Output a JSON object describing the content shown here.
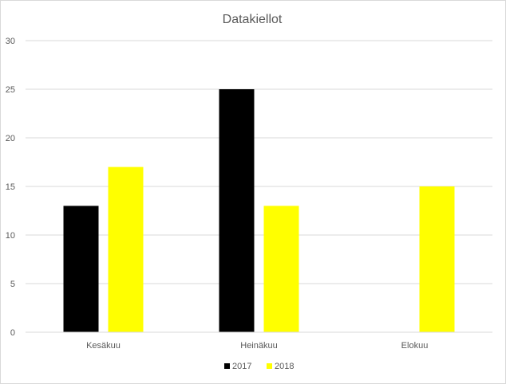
{
  "chart_data": {
    "type": "bar",
    "title": "Datakiellot",
    "xlabel": "",
    "ylabel": "",
    "categories": [
      "Kesäkuu",
      "Heinäkuu",
      "Elokuu"
    ],
    "series": [
      {
        "name": "2017",
        "values": [
          13,
          25,
          0
        ],
        "color": "#000000"
      },
      {
        "name": "2018",
        "values": [
          17,
          13,
          15
        ],
        "color": "#ffff00"
      }
    ],
    "ylim": [
      0,
      30
    ],
    "yticks": [
      "0",
      "5",
      "10",
      "15",
      "20",
      "25",
      "30"
    ],
    "grid": true,
    "legend_position": "bottom"
  }
}
